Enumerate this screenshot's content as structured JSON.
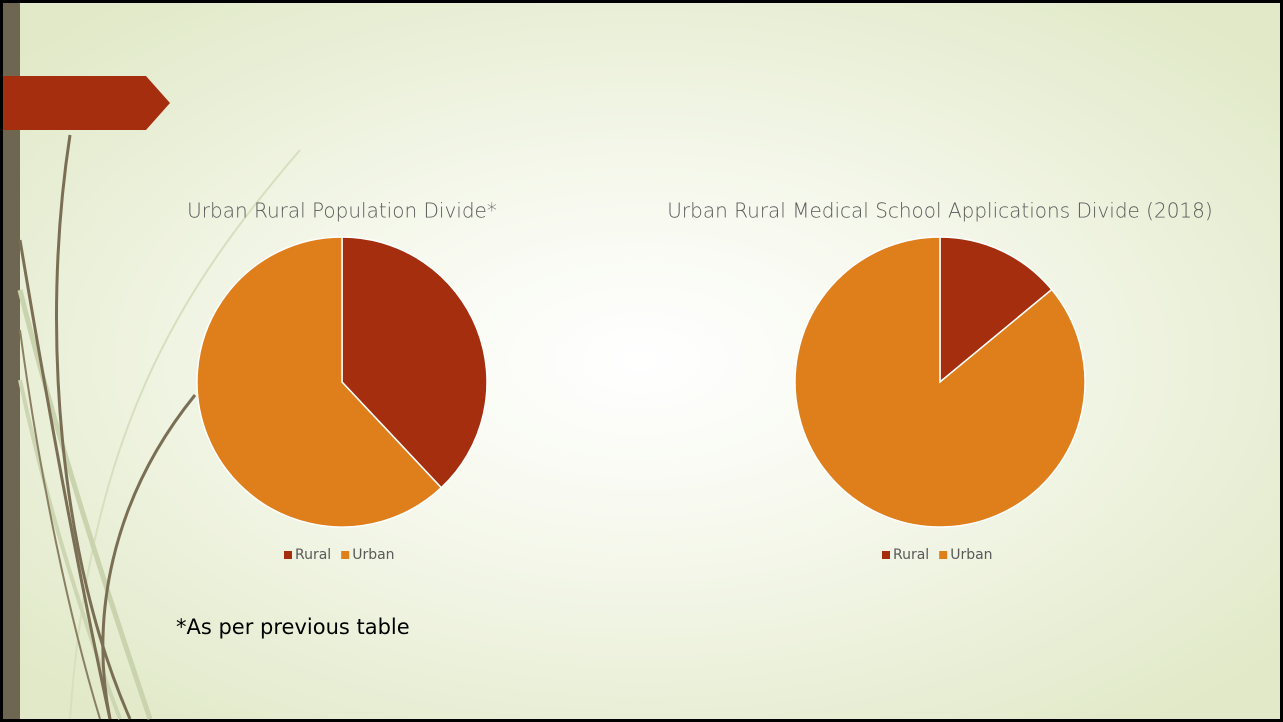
{
  "chart_data": [
    {
      "type": "pie",
      "title": "Urban Rural Population Divide*",
      "categories": [
        "Rural",
        "Urban"
      ],
      "values": [
        38,
        62
      ],
      "colors": [
        "#a52e0f",
        "#de7f1c"
      ],
      "legend": "bottom"
    },
    {
      "type": "pie",
      "title": "Urban Rural Medical School Applications Divide (2018)",
      "categories": [
        "Rural",
        "Urban"
      ],
      "values": [
        14,
        86
      ],
      "colors": [
        "#a52e0f",
        "#de7f1c"
      ],
      "legend": "bottom"
    }
  ],
  "footnote": "*As per previous table"
}
